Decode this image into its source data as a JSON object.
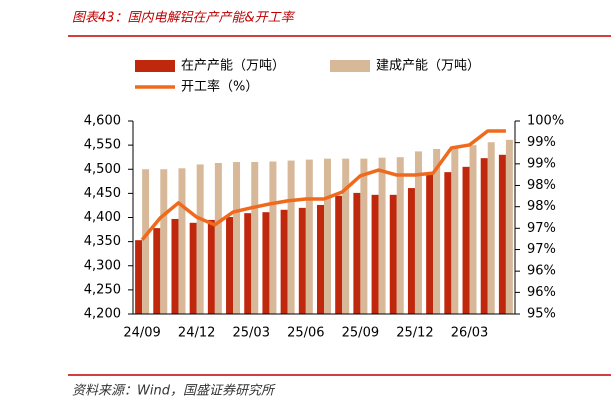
{
  "chart_data": {
    "type": "bar",
    "title": "图表43：国内电解铝在产产能&开工率",
    "source": "资料来源：Wind，国盛证券研究所",
    "categories": [
      "24/09",
      null,
      null,
      "24/12",
      null,
      null,
      "25/03",
      null,
      null,
      "25/06",
      null,
      null,
      "25/09",
      null,
      null,
      "25/12",
      null,
      null,
      "26/03",
      null,
      null
    ],
    "series": [
      {
        "name": "在产产能（万吨）",
        "color": "#c0280e",
        "type": "bar",
        "values": [
          4353,
          4378,
          4397,
          4389,
          4395,
          4401,
          4409,
          4411,
          4416,
          4420,
          4426,
          4445,
          4451,
          4447,
          4447,
          4461,
          4492,
          4494,
          4505,
          4523,
          4530
        ]
      },
      {
        "name": "建成产能（万吨）",
        "color": "#d7b99a",
        "type": "bar",
        "values": [
          4500,
          4500,
          4502,
          4510,
          4513,
          4515,
          4515,
          4516,
          4518,
          4520,
          4522,
          4522,
          4522,
          4524,
          4525,
          4537,
          4542,
          4546,
          4550,
          4556,
          4561
        ]
      },
      {
        "name": "开工率（%）",
        "color": "#f06a1e",
        "type": "line",
        "axis": "y2",
        "values": [
          96.92,
          97.49,
          97.88,
          97.51,
          97.31,
          97.64,
          97.75,
          97.85,
          97.93,
          97.98,
          97.98,
          98.16,
          98.58,
          98.73,
          98.6,
          98.6,
          98.65,
          99.3,
          99.38,
          99.74,
          99.74
        ]
      }
    ],
    "ylim": [
      4200,
      4600
    ],
    "yticks": [
      {
        "value": 4200,
        "label": "4,200"
      },
      {
        "value": 4250,
        "label": "4,250"
      },
      {
        "value": 4300,
        "label": "4,300"
      },
      {
        "value": 4350,
        "label": "4,350"
      },
      {
        "value": 4400,
        "label": "4,400"
      },
      {
        "value": 4450,
        "label": "4,450"
      },
      {
        "value": 4500,
        "label": "4,500"
      },
      {
        "value": 4550,
        "label": "4,550"
      },
      {
        "value": 4600,
        "label": "4,600"
      }
    ],
    "y2lim": [
      95,
      100
    ],
    "y2ticks": [
      {
        "value": 95,
        "label": "95%"
      },
      {
        "value": 95.56,
        "label": "96%"
      },
      {
        "value": 96.11,
        "label": "96%"
      },
      {
        "value": 96.67,
        "label": "97%"
      },
      {
        "value": 97.22,
        "label": "97%"
      },
      {
        "value": 97.78,
        "label": "98%"
      },
      {
        "value": 98.33,
        "label": "98%"
      },
      {
        "value": 98.89,
        "label": "99%"
      },
      {
        "value": 99.44,
        "label": "99%"
      },
      {
        "value": 100,
        "label": "100%"
      }
    ],
    "grid": false
  }
}
